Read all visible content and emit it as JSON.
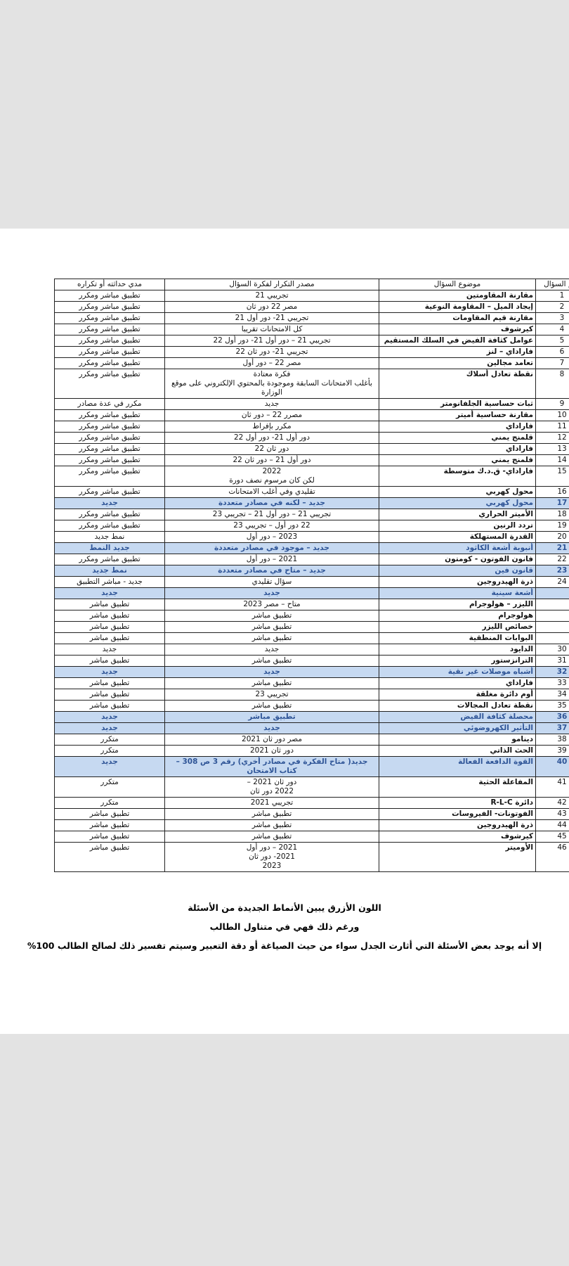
{
  "table": {
    "headers": [
      "رقم السؤال",
      "موضوع السؤال",
      "مصدر التكرار لفكرة السؤال",
      "مدي حداثته أو تكراره"
    ],
    "rows": [
      {
        "no": 1,
        "topic": "مقارنة المقاومتين",
        "source": "تجريبي 21",
        "status": "تطبيق مباشر ومكرر",
        "highlighted": false
      },
      {
        "no": 2,
        "topic": "إيجاد الميل – المقاومة النوعية",
        "source": "مصر 22 دور ثان",
        "status": "تطبيق مباشر ومكرر",
        "highlighted": false
      },
      {
        "no": 3,
        "topic": "مقارنة قيم المقاومات",
        "source": "تجريبي 21- دور أول 21",
        "status": "تطبيق مباشر ومكرر",
        "highlighted": false
      },
      {
        "no": 4,
        "topic": "كيرشوف",
        "source": "كل الامتحانات تقريبا",
        "status": "تطبيق مباشر ومكرر",
        "highlighted": false
      },
      {
        "no": 5,
        "topic": "عوامل كثافة الفيض في السلك المستقيم",
        "source": "تجريبي 21 – دور أول 21- دور أول 22",
        "status": "تطبيق مباشر ومكرر",
        "highlighted": false
      },
      {
        "no": 6,
        "topic": "فاراداي – لنز",
        "source": "تجريبي 21- دور ثان 22",
        "status": "تطبيق مباشر ومكرر",
        "highlighted": false
      },
      {
        "no": 7,
        "topic": "تعامد مجالين",
        "source": "مصر 22 – دور أول",
        "status": "تطبيق مباشر ومكرر",
        "highlighted": false
      },
      {
        "no": 8,
        "topic": "نقطة تعادل أسلاك",
        "source": "فكرة معتادة\nبأغلب الامتحانات السابقة وموجودة بالمحتوي الإلكتروني على موقع الوزارة",
        "status": "تطبيق مباشر ومكرر",
        "highlighted": false
      },
      {
        "no": 9,
        "topic": "ثبات حساسية الجلفانومتر",
        "source": "جديد",
        "status": "مكرر في عدة مصادر",
        "highlighted": false
      },
      {
        "no": 10,
        "topic": "مقارنة حساسية أميتر",
        "source": "مصرر 22 – دور ثان",
        "status": "تطبيق مباشر ومكرر",
        "highlighted": false
      },
      {
        "no": 11,
        "topic": "فاراداي",
        "source": "مكرر بإفراط",
        "status": "تطبيق مباشر ومكرر",
        "highlighted": false
      },
      {
        "no": 12,
        "topic": "قلمنج يمني",
        "source": "دور أول 21- دور أول 22",
        "status": "تطبيق مباشر ومكرر",
        "highlighted": false
      },
      {
        "no": 13,
        "topic": "فاراداي",
        "source": "دور ثان 22",
        "status": "تطبيق مباشر ومكرر",
        "highlighted": false
      },
      {
        "no": 14,
        "topic": "فلمنج يمني",
        "source": "دور أول 21 – دور ثان 22",
        "status": "تطبيق مباشر ومكرر",
        "highlighted": false
      },
      {
        "no": 15,
        "topic": "فاراداي- ق.د.ك متوسطة",
        "source": "2022\nلكن كان مرسوم نصف دورة",
        "status": "تطبيق مباشر ومكرر",
        "highlighted": false
      },
      {
        "no": 16,
        "topic": "محول كهربي",
        "source": "تقليدي وفي أغلب الامتحانات",
        "status": "تطبيق مباشر ومكرر",
        "highlighted": false
      },
      {
        "no": 17,
        "topic": "محول كهربي",
        "source": "جديد – لكنه في مصادر متعددة",
        "status": "جديد",
        "highlighted": true
      },
      {
        "no": 18,
        "topic": "الأميتر الحراري",
        "source": "تجريبي 21 – دور أول 21 – تجريبي 23",
        "status": "تطبيق مباشر ومكرر",
        "highlighted": false
      },
      {
        "no": 19,
        "topic": "تردد الرنين",
        "source": "22 دور أول – تجريبي 23",
        "status": "تطبيق مباشر ومكرر",
        "highlighted": false
      },
      {
        "no": 20,
        "topic": "القدرة المستهلكة",
        "source": "2023 – دور أول",
        "status": "نمط جديد",
        "highlighted": false
      },
      {
        "no": 21,
        "topic": "أنبوبة أشعة الكاثود",
        "source": "جديد – موجود في مصادر متعددة",
        "status": "جديد النمط",
        "highlighted": true
      },
      {
        "no": 22,
        "topic": "فانون الفوتون - كومتون",
        "source": "2021 – دور أول",
        "status": "تطبيق مباشر ومكرر",
        "highlighted": false
      },
      {
        "no": 23,
        "topic": "قانون فين",
        "source": "جديد – متاح في مصادر متعددة",
        "status": "نمط جديد",
        "highlighted": true
      },
      {
        "no": 24,
        "topic": "ذرة الهيدروجين",
        "source": "سؤال تقليدي",
        "status": "جديد - مباشر التطبيق",
        "highlighted": false
      },
      {
        "no": null,
        "topic": "أشعة سينية",
        "source": "جديد",
        "status": "جديد",
        "highlighted": true
      },
      {
        "no": null,
        "topic": "الليزر – هولوجرام",
        "source": "متاح – مصر 2023",
        "status": "تطبيق مباشر",
        "highlighted": false
      },
      {
        "no": null,
        "topic": "هولوجرام",
        "source": "تطبيق مباشر",
        "status": "تطبيق مباشر",
        "highlighted": false
      },
      {
        "no": null,
        "topic": "خصائص الليزر",
        "source": "تطبيق مباشر",
        "status": "تطبيق مباشر",
        "highlighted": false
      },
      {
        "no": null,
        "topic": "البوابات المنطقية",
        "source": "تطبيق مباشر",
        "status": "تطبيق مباشر",
        "highlighted": false
      },
      {
        "no": 30,
        "topic": "الدايود",
        "source": "جديد",
        "status": "جديد",
        "highlighted": false
      },
      {
        "no": 31,
        "topic": "الترانزستور",
        "source": "تطبيق مباشر",
        "status": "تطبيق مباشر",
        "highlighted": false
      },
      {
        "no": 32,
        "topic": "أشباه موصلات غير نقية",
        "source": "جديد",
        "status": "جديد",
        "highlighted": true
      },
      {
        "no": 33,
        "topic": "فاراداي",
        "source": "تطبيق مباشر",
        "status": "تطبيق مباشر",
        "highlighted": false
      },
      {
        "no": 34,
        "topic": "أوم دائرة مغلقة",
        "source": "تجريبي 23",
        "status": "تطبيق مباشر",
        "highlighted": false
      },
      {
        "no": 35,
        "topic": "نقطة تعادل المجالات",
        "source": "تطبيق مباشر",
        "status": "تطبيق مباشر",
        "highlighted": false
      },
      {
        "no": 36,
        "topic": "محصلة كثافة الفيض",
        "source": "تطبيق مباشر",
        "status": "جديد",
        "highlighted": true
      },
      {
        "no": 37,
        "topic": "التأثير الكهروضوئي",
        "source": "جديد",
        "status": "جديد",
        "highlighted": true
      },
      {
        "no": 38,
        "topic": "دينامو",
        "source": "مصر دور ثان 2021",
        "status": "متكرر",
        "highlighted": false
      },
      {
        "no": 39,
        "topic": "الحث الذاتي",
        "source": "دور ثان 2021",
        "status": "متكرر",
        "highlighted": false
      },
      {
        "no": 40,
        "topic": "القوة الدافعة الفعالة",
        "source": "جديد( متاح الفكرة في مصادر أخري) رقم 3 ص 308 – كتاب الامتحان",
        "status": "جديد",
        "highlighted": true
      },
      {
        "no": 41,
        "topic": "المفاعلة الحثية",
        "source": "دور ثان 2021 –\n2022 دور ثان",
        "status": "متكرر",
        "highlighted": false
      },
      {
        "no": 42,
        "topic": "دائرة R-L-C",
        "source": "تجريبي 2021",
        "status": "متكرر",
        "highlighted": false
      },
      {
        "no": 43,
        "topic": "الفوتونات- الفيروسات",
        "source": "تطبيق مباشر",
        "status": "تطبيق مباشر",
        "highlighted": false
      },
      {
        "no": 44,
        "topic": "ذرة الهيدروجين",
        "source": "تطبيق مباشر",
        "status": "تطبيق مباشر",
        "highlighted": false
      },
      {
        "no": 45,
        "topic": "كيرشوف",
        "source": "تطبيق مباشر",
        "status": "تطبيق مباشر",
        "highlighted": false
      },
      {
        "no": 46,
        "topic": "الأوميتر",
        "source": "2021 – دور أول\n2021- دور ثان\n2023",
        "status": "تطبيق مباشر",
        "highlighted": false
      }
    ]
  },
  "notes": [
    "اللون الأزرق يبين الأنماط الجديدة من الأسئلة",
    "ورغم ذلك فهي في متناول الطالب",
    "إلا أنه يوجد بعض الأسئلة التي أثارت الجدل سواء من حيث الصياغة أو دقة التعبير وسيتم تفسير ذلك لصالح الطالب 100%"
  ]
}
